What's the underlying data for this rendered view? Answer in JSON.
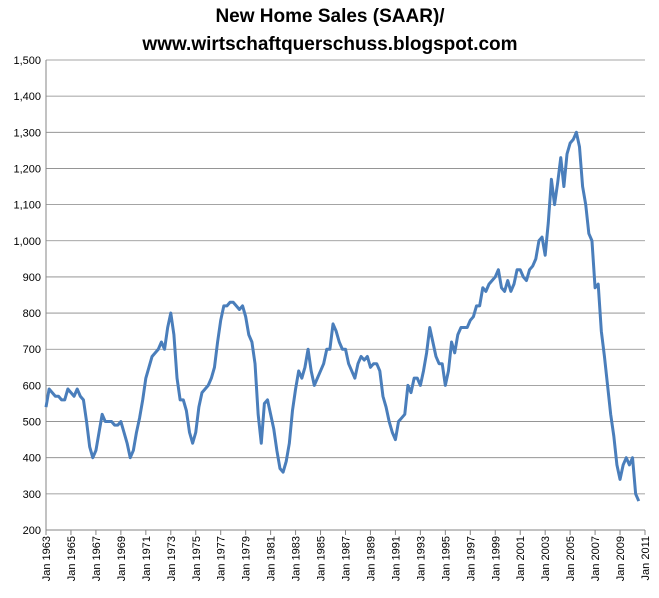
{
  "chart_data": {
    "type": "line",
    "title": [
      "New Home Sales (SAAR)/",
      "www.wirtschaftquerschuss.blogspot.com"
    ],
    "categories": [
      "Jan 1963",
      null,
      null,
      null,
      null,
      null,
      null,
      null,
      "Jan 1965",
      null,
      null,
      null,
      null,
      null,
      null,
      null,
      "Jan 1967",
      null,
      null,
      null,
      null,
      null,
      null,
      null,
      "Jan 1969",
      null,
      null,
      null,
      null,
      null,
      null,
      null,
      "Jan 1971",
      null,
      null,
      null,
      null,
      null,
      null,
      null,
      "Jan 1973",
      null,
      null,
      null,
      null,
      null,
      null,
      null,
      "Jan 1975",
      null,
      null,
      null,
      null,
      null,
      null,
      null,
      "Jan 1977",
      null,
      null,
      null,
      null,
      null,
      null,
      null,
      "Jan 1979",
      null,
      null,
      null,
      null,
      null,
      null,
      null,
      "Jan 1981",
      null,
      null,
      null,
      null,
      null,
      null,
      null,
      "Jan 1983",
      null,
      null,
      null,
      null,
      null,
      null,
      null,
      "Jan 1985",
      null,
      null,
      null,
      null,
      null,
      null,
      null,
      "Jan 1987",
      null,
      null,
      null,
      null,
      null,
      null,
      null,
      "Jan 1989",
      null,
      null,
      null,
      null,
      null,
      null,
      null,
      "Jan 1991",
      null,
      null,
      null,
      null,
      null,
      null,
      null,
      "Jan 1993",
      null,
      null,
      null,
      null,
      null,
      null,
      null,
      "Jan 1995",
      null,
      null,
      null,
      null,
      null,
      null,
      null,
      "Jan 1997",
      null,
      null,
      null,
      null,
      null,
      null,
      null,
      "Jan 1999",
      null,
      null,
      null,
      null,
      null,
      null,
      null,
      "Jan 2001",
      null,
      null,
      null,
      null,
      null,
      null,
      null,
      "Jan 2003",
      null,
      null,
      null,
      null,
      null,
      null,
      null,
      "Jan 2005",
      null,
      null,
      null,
      null,
      null,
      null,
      null,
      "Jan 2007",
      null,
      null,
      null,
      null,
      null,
      null,
      null,
      "Jan 2009",
      null,
      null,
      null,
      null,
      null,
      null,
      null,
      "Jan 2011"
    ],
    "values": [
      540,
      590,
      580,
      570,
      570,
      560,
      560,
      590,
      580,
      570,
      590,
      570,
      560,
      500,
      430,
      400,
      420,
      470,
      520,
      500,
      500,
      500,
      490,
      490,
      500,
      470,
      440,
      400,
      420,
      470,
      510,
      560,
      620,
      650,
      680,
      690,
      700,
      720,
      700,
      760,
      800,
      740,
      620,
      560,
      560,
      530,
      470,
      440,
      470,
      540,
      580,
      590,
      600,
      620,
      650,
      720,
      780,
      820,
      820,
      830,
      830,
      820,
      810,
      820,
      790,
      740,
      720,
      660,
      520,
      440,
      550,
      560,
      520,
      480,
      420,
      370,
      360,
      390,
      440,
      530,
      590,
      640,
      620,
      650,
      700,
      640,
      600,
      620,
      640,
      660,
      700,
      700,
      770,
      750,
      720,
      700,
      700,
      660,
      640,
      620,
      660,
      680,
      670,
      680,
      650,
      660,
      660,
      640,
      570,
      540,
      500,
      470,
      450,
      500,
      510,
      520,
      600,
      580,
      620,
      620,
      600,
      640,
      690,
      760,
      720,
      680,
      660,
      660,
      600,
      640,
      720,
      690,
      740,
      760,
      760,
      760,
      780,
      790,
      820,
      820,
      870,
      860,
      880,
      890,
      900,
      920,
      870,
      860,
      890,
      860,
      880,
      920,
      920,
      900,
      890,
      920,
      930,
      950,
      1000,
      1010,
      960,
      1050,
      1170,
      1100,
      1160,
      1230,
      1150,
      1240,
      1270,
      1280,
      1300,
      1260,
      1150,
      1100,
      1020,
      1000,
      870,
      880,
      750,
      680,
      600,
      520,
      460,
      380,
      340,
      380,
      400,
      380,
      400,
      300,
      280,
      null,
      null
    ],
    "color": "#4a7ebb",
    "ylim": [
      200,
      1500
    ],
    "yticks": [
      200,
      300,
      400,
      500,
      600,
      700,
      800,
      900,
      {
        "value": 1000,
        "label": "1,000"
      },
      {
        "value": 1100,
        "label": "1,100"
      },
      {
        "value": 1200,
        "label": "1,200"
      },
      {
        "value": 1300,
        "label": "1,300"
      },
      {
        "value": 1400,
        "label": "1,400"
      },
      {
        "value": 1500,
        "label": "1,500"
      }
    ],
    "grid": true
  }
}
